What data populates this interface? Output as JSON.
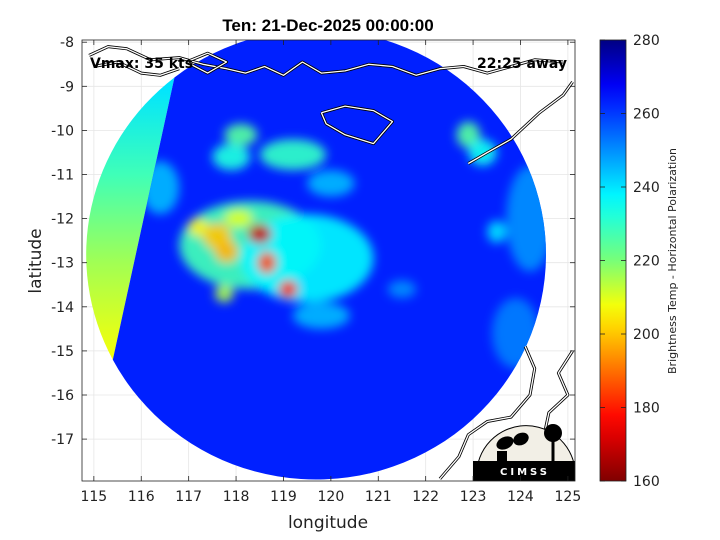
{
  "chart_data": {
    "type": "heatmap",
    "title": "Ten: 21-Dec-2025 00:00:00",
    "xlabel": "longitude",
    "ylabel": "latitude",
    "xlim": [
      114.75,
      125.15
    ],
    "ylim": [
      -17.95,
      -7.95
    ],
    "xticks": [
      115,
      116,
      117,
      118,
      119,
      120,
      121,
      122,
      123,
      124,
      125
    ],
    "yticks": [
      -8,
      -9,
      -10,
      -11,
      -12,
      -13,
      -14,
      -15,
      -16,
      -17
    ],
    "xtick_labels": [
      "115",
      "116",
      "117",
      "118",
      "119",
      "120",
      "121",
      "122",
      "123",
      "124",
      "125"
    ],
    "ytick_labels": [
      "-8",
      "-9",
      "-10",
      "-11",
      "-12",
      "-13",
      "-14",
      "-15",
      "-16",
      "-17"
    ],
    "grid": true,
    "colorbar": {
      "label": "Brightness Temp - Horizontal Polarization",
      "range": [
        160,
        280
      ],
      "ticks": [
        160,
        180,
        200,
        220,
        240,
        260,
        280
      ],
      "tick_labels": [
        "160",
        "180",
        "200",
        "220",
        "240",
        "260",
        "280"
      ],
      "colormap": "jet"
    },
    "background_value": 263,
    "swath": {
      "center_lon": 120.2,
      "center_lat": -12.9,
      "radius_lon": 4.85,
      "radius_lat": 5.1
    },
    "swath_edge": {
      "lon_top": 116.7,
      "lat_top": -8.8,
      "lon_bottom": 115.4,
      "lat_bottom": -15.2
    },
    "cells": [
      {
        "lon": 118.3,
        "lat": -12.6,
        "value": 228,
        "sx": 1.5,
        "sy": 1.0
      },
      {
        "lon": 119.5,
        "lat": -12.9,
        "value": 238,
        "sx": 1.4,
        "sy": 1.0
      },
      {
        "lon": 117.6,
        "lat": -12.4,
        "value": 200,
        "sx": 0.3,
        "sy": 0.3
      },
      {
        "lon": 117.2,
        "lat": -12.2,
        "value": 205,
        "sx": 0.2,
        "sy": 0.2
      },
      {
        "lon": 118.05,
        "lat": -12.0,
        "value": 210,
        "sx": 0.3,
        "sy": 0.2
      },
      {
        "lon": 118.5,
        "lat": -12.35,
        "value": 170,
        "sx": 0.25,
        "sy": 0.22
      },
      {
        "lon": 117.8,
        "lat": -12.75,
        "value": 198,
        "sx": 0.25,
        "sy": 0.25
      },
      {
        "lon": 118.65,
        "lat": -13.0,
        "value": 185,
        "sx": 0.2,
        "sy": 0.25
      },
      {
        "lon": 119.1,
        "lat": -13.6,
        "value": 180,
        "sx": 0.2,
        "sy": 0.2
      },
      {
        "lon": 117.75,
        "lat": -13.7,
        "value": 215,
        "sx": 0.2,
        "sy": 0.2
      },
      {
        "lon": 118.1,
        "lat": -10.1,
        "value": 225,
        "sx": 0.35,
        "sy": 0.25
      },
      {
        "lon": 117.9,
        "lat": -10.6,
        "value": 233,
        "sx": 0.4,
        "sy": 0.3
      },
      {
        "lon": 119.2,
        "lat": -10.55,
        "value": 230,
        "sx": 0.7,
        "sy": 0.35
      },
      {
        "lon": 120.0,
        "lat": -11.2,
        "value": 245,
        "sx": 0.5,
        "sy": 0.3
      },
      {
        "lon": 122.9,
        "lat": -10.1,
        "value": 225,
        "sx": 0.25,
        "sy": 0.3
      },
      {
        "lon": 123.2,
        "lat": -10.5,
        "value": 235,
        "sx": 0.3,
        "sy": 0.3
      },
      {
        "lon": 123.5,
        "lat": -12.3,
        "value": 240,
        "sx": 0.2,
        "sy": 0.25
      },
      {
        "lon": 119.8,
        "lat": -14.2,
        "value": 245,
        "sx": 0.6,
        "sy": 0.3
      },
      {
        "lon": 121.5,
        "lat": -13.6,
        "value": 250,
        "sx": 0.3,
        "sy": 0.2
      },
      {
        "lon": 116.4,
        "lat": -11.3,
        "value": 245,
        "sx": 0.4,
        "sy": 0.6
      },
      {
        "lon": 124.2,
        "lat": -12.0,
        "value": 250,
        "sx": 0.5,
        "sy": 1.2
      },
      {
        "lon": 123.9,
        "lat": -14.6,
        "value": 252,
        "sx": 0.5,
        "sy": 0.8
      }
    ],
    "outside_band": [
      {
        "lat": -9.0,
        "value": 240
      },
      {
        "lat": -11.0,
        "value": 228
      },
      {
        "lat": -13.0,
        "value": 216
      },
      {
        "lat": -14.5,
        "value": 210
      },
      {
        "lat": -15.2,
        "value": 208
      }
    ],
    "coastlines": [
      [
        [
          114.9,
          -8.3
        ],
        [
          115.3,
          -8.1
        ],
        [
          115.7,
          -8.15
        ],
        [
          116.2,
          -8.4
        ],
        [
          116.8,
          -8.35
        ],
        [
          117.3,
          -8.5
        ],
        [
          117.8,
          -8.6
        ],
        [
          118.2,
          -8.7
        ],
        [
          118.6,
          -8.55
        ],
        [
          119.0,
          -8.75
        ],
        [
          119.4,
          -8.45
        ],
        [
          119.8,
          -8.7
        ],
        [
          120.3,
          -8.65
        ],
        [
          120.8,
          -8.5
        ],
        [
          121.3,
          -8.55
        ],
        [
          121.8,
          -8.75
        ],
        [
          122.3,
          -8.6
        ],
        [
          122.8,
          -8.55
        ],
        [
          123.3,
          -8.7
        ],
        [
          123.8,
          -8.55
        ],
        [
          124.3,
          -8.4
        ],
        [
          124.9,
          -8.45
        ]
      ],
      [
        [
          115.0,
          -8.55
        ],
        [
          115.5,
          -8.45
        ],
        [
          116.0,
          -8.7
        ],
        [
          116.4,
          -8.75
        ],
        [
          116.8,
          -8.6
        ]
      ],
      [
        [
          116.95,
          -8.45
        ],
        [
          117.4,
          -8.25
        ],
        [
          117.8,
          -8.45
        ],
        [
          117.4,
          -8.7
        ],
        [
          116.95,
          -8.45
        ]
      ],
      [
        [
          119.8,
          -9.6
        ],
        [
          120.3,
          -9.45
        ],
        [
          120.9,
          -9.55
        ],
        [
          121.3,
          -9.8
        ],
        [
          120.9,
          -10.3
        ],
        [
          120.3,
          -10.1
        ],
        [
          119.9,
          -9.85
        ],
        [
          119.8,
          -9.6
        ]
      ],
      [
        [
          122.9,
          -10.75
        ],
        [
          123.3,
          -10.5
        ],
        [
          123.8,
          -10.2
        ],
        [
          124.4,
          -9.6
        ],
        [
          124.9,
          -9.2
        ],
        [
          125.1,
          -8.9
        ]
      ],
      [
        [
          124.1,
          -14.9
        ],
        [
          124.3,
          -15.4
        ],
        [
          124.2,
          -16.0
        ],
        [
          123.8,
          -16.5
        ],
        [
          123.3,
          -16.6
        ],
        [
          122.9,
          -16.9
        ],
        [
          122.7,
          -17.4
        ],
        [
          122.3,
          -17.9
        ]
      ],
      [
        [
          125.1,
          -15.0
        ],
        [
          124.8,
          -15.5
        ],
        [
          125.0,
          -16.0
        ],
        [
          124.6,
          -16.4
        ],
        [
          124.5,
          -16.9
        ]
      ]
    ]
  },
  "overlays": {
    "vmax_text": "Vmax: 35 kts",
    "away_text": "22:25 away",
    "logo_text": "CIMSS"
  }
}
